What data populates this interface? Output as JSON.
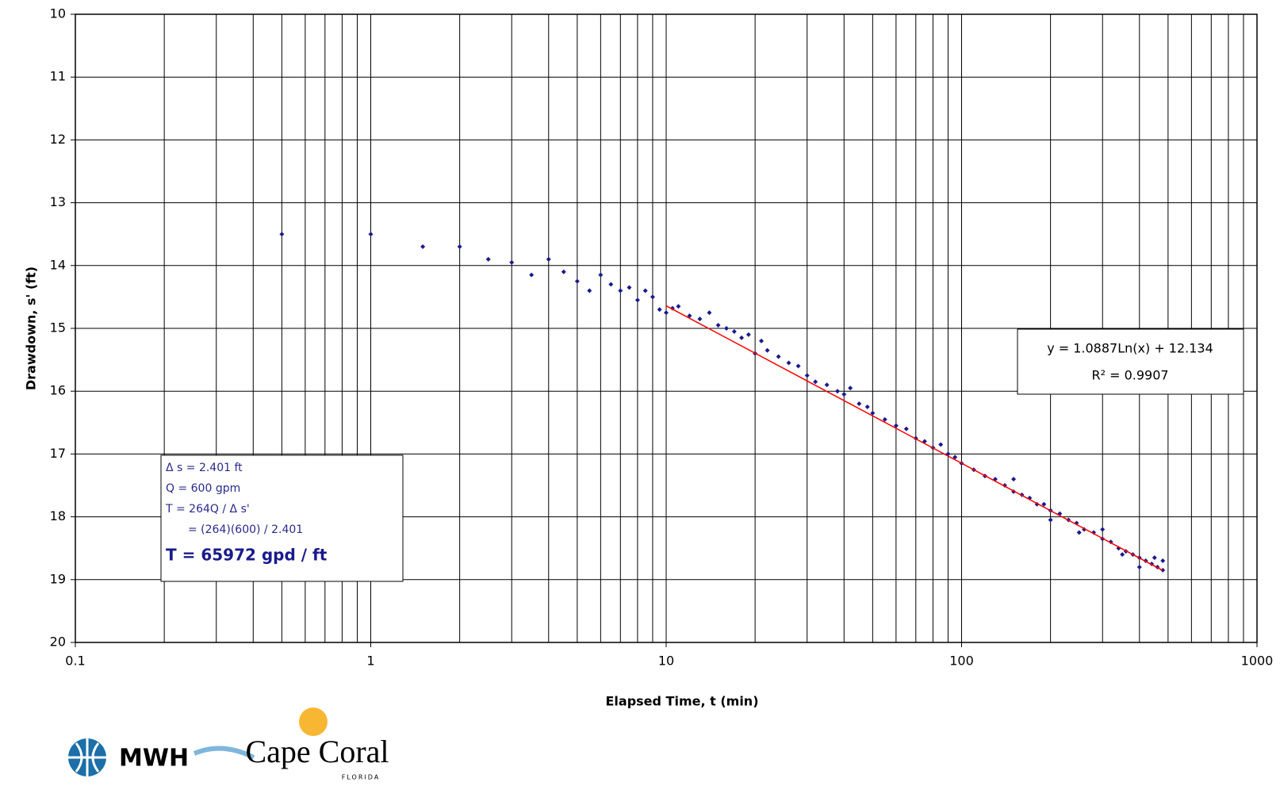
{
  "chart_data": {
    "type": "scatter",
    "x_label": "Elapsed Time, t (min)",
    "y_label": "Drawdown, s' (ft)",
    "xlim": [
      0.1,
      1000
    ],
    "xticks": [
      0.1,
      1,
      10,
      100,
      1000
    ],
    "x_log": true,
    "x_minor_grid": true,
    "ylim": [
      10,
      20
    ],
    "yticks": [
      10,
      11,
      12,
      13,
      14,
      15,
      16,
      17,
      18,
      19,
      20
    ],
    "y_reversed": true,
    "grid": true,
    "grid_color": "#000000",
    "series": [
      {
        "name": "Drawdown",
        "color": "#1a1a8c",
        "x": [
          0.5,
          1,
          1.5,
          2,
          2.5,
          3,
          3.5,
          4,
          4.5,
          5,
          5.5,
          6,
          6.5,
          7,
          7.5,
          8,
          8.5,
          9,
          9.5,
          10,
          10.5,
          11,
          12,
          13,
          14,
          15,
          16,
          17,
          18,
          19,
          20,
          21,
          22,
          24,
          26,
          28,
          30,
          32,
          35,
          38,
          40,
          42,
          45,
          48,
          50,
          55,
          60,
          65,
          70,
          75,
          80,
          85,
          90,
          95,
          100,
          110,
          120,
          130,
          140,
          150,
          160,
          170,
          180,
          190,
          200,
          215,
          230,
          245,
          260,
          280,
          300,
          320,
          340,
          360,
          380,
          400,
          420,
          440,
          460,
          480,
          150,
          200,
          250,
          300,
          350,
          400,
          450,
          480
        ],
        "y": [
          13.5,
          13.5,
          13.7,
          13.7,
          13.9,
          13.95,
          14.15,
          13.9,
          14.1,
          14.25,
          14.4,
          14.15,
          14.3,
          14.4,
          14.35,
          14.55,
          14.4,
          14.5,
          14.7,
          14.75,
          14.68,
          14.65,
          14.8,
          14.85,
          14.75,
          14.95,
          15.0,
          15.05,
          15.15,
          15.1,
          15.4,
          15.2,
          15.35,
          15.45,
          15.55,
          15.6,
          15.75,
          15.85,
          15.9,
          16.0,
          16.05,
          15.95,
          16.2,
          16.25,
          16.35,
          16.45,
          16.55,
          16.6,
          16.75,
          16.8,
          16.9,
          16.85,
          17.0,
          17.05,
          17.15,
          17.25,
          17.35,
          17.4,
          17.5,
          17.6,
          17.65,
          17.7,
          17.8,
          17.8,
          17.9,
          17.95,
          18.05,
          18.1,
          18.2,
          18.25,
          18.35,
          18.4,
          18.5,
          18.55,
          18.6,
          18.65,
          18.7,
          18.75,
          18.8,
          18.85,
          17.4,
          18.05,
          18.25,
          18.2,
          18.6,
          18.8,
          18.65,
          18.7
        ]
      }
    ],
    "trendline": {
      "color": "#ff0000",
      "x": [
        10,
        480
      ],
      "y": [
        14.641,
        18.855
      ]
    },
    "equation_box": [
      "y = 1.0887Ln(x) + 12.134",
      "R² = 0.9907"
    ],
    "calc_box": [
      "Δ s = 2.401 ft",
      "Q = 600 gpm",
      "T = 264Q / Δ s'",
      "= (264)(600) / 2.401",
      "T = 65972 gpd / ft"
    ],
    "logos": [
      "MWH",
      "Cape Coral",
      "FLORIDA"
    ]
  }
}
